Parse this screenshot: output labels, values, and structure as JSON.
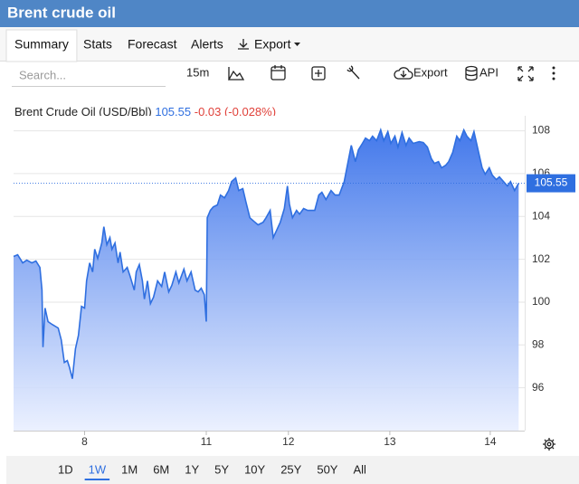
{
  "header": {
    "title": "Brent crude oil"
  },
  "tabs": [
    "Summary",
    "Stats",
    "Forecast",
    "Alerts",
    "Export"
  ],
  "active_tab": "Summary",
  "toolbar": {
    "search_placeholder": "Search...",
    "interval": "15m",
    "export": "Export",
    "api": "API"
  },
  "ranges": [
    "1D",
    "1W",
    "1M",
    "6M",
    "1Y",
    "5Y",
    "10Y",
    "25Y",
    "50Y",
    "All"
  ],
  "active_range": "1W",
  "chart_data": {
    "type": "area",
    "last_price": 105.55,
    "change": "-0.03 (-0.028%)",
    "x": [
      0.0,
      0.04,
      0.09,
      0.13,
      0.18,
      0.22,
      0.26,
      0.28,
      0.29,
      0.31,
      0.34,
      0.38,
      0.44,
      0.47,
      0.5,
      0.53,
      0.55,
      0.58,
      0.61,
      0.64,
      0.67,
      0.7,
      0.72,
      0.75,
      0.78,
      0.8,
      0.83,
      0.87,
      0.89,
      0.92,
      0.95,
      0.97,
      1.0,
      1.03,
      1.05,
      1.08,
      1.12,
      1.15,
      1.19,
      1.21,
      1.24,
      1.27,
      1.29,
      1.32,
      1.35,
      1.38,
      1.42,
      1.46,
      1.49,
      1.53,
      1.56,
      1.6,
      1.63,
      1.68,
      1.71,
      1.75,
      1.79,
      1.82,
      1.85,
      1.88,
      1.9,
      1.91,
      1.94,
      1.97,
      2.01,
      2.04,
      2.08,
      2.12,
      2.15,
      2.19,
      2.22,
      2.26,
      2.29,
      2.33,
      2.37,
      2.41,
      2.46,
      2.49,
      2.53,
      2.56,
      2.59,
      2.63,
      2.67,
      2.7,
      2.72,
      2.75,
      2.79,
      2.82,
      2.86,
      2.9,
      2.97,
      3.01,
      3.04,
      3.08,
      3.13,
      3.17,
      3.21,
      3.26,
      3.29,
      3.33,
      3.37,
      3.4,
      3.44,
      3.47,
      3.51,
      3.54,
      3.58,
      3.62,
      3.65,
      3.69,
      3.72,
      3.76,
      3.79,
      3.83,
      3.87,
      3.9,
      3.94,
      4.0,
      4.04,
      4.08,
      4.12,
      4.15,
      4.19,
      4.22,
      4.26,
      4.29,
      4.33,
      4.37,
      4.4,
      4.44,
      4.47,
      4.51,
      4.54,
      4.58,
      4.62,
      4.65,
      4.69,
      4.72,
      4.76,
      4.79,
      4.83,
      4.87,
      4.9,
      4.94,
      4.98
    ],
    "series": [
      {
        "name": "Brent Crude Oil (USD/Bbl)",
        "color": "#2f6fe0",
        "values": [
          102.13,
          102.21,
          101.83,
          101.96,
          101.83,
          101.92,
          101.62,
          100.56,
          97.9,
          99.72,
          99.09,
          98.96,
          98.79,
          98.24,
          97.18,
          97.27,
          96.97,
          96.42,
          97.82,
          98.45,
          99.8,
          99.72,
          100.99,
          101.83,
          101.41,
          102.47,
          102.04,
          102.76,
          103.52,
          102.68,
          103.01,
          102.47,
          102.76,
          101.83,
          102.34,
          101.41,
          101.62,
          101.2,
          100.56,
          101.41,
          101.75,
          100.99,
          100.14,
          100.99,
          99.93,
          100.23,
          100.99,
          100.73,
          101.41,
          100.48,
          100.78,
          101.41,
          100.9,
          101.54,
          100.99,
          101.41,
          100.56,
          100.48,
          100.65,
          100.35,
          99.09,
          103.94,
          104.28,
          104.45,
          104.54,
          105.0,
          104.87,
          105.21,
          105.63,
          105.8,
          105.21,
          105.3,
          104.7,
          103.94,
          103.77,
          103.61,
          103.73,
          103.94,
          104.28,
          103.01,
          103.31,
          103.73,
          104.37,
          105.42,
          104.58,
          103.94,
          104.28,
          104.11,
          104.37,
          104.28,
          104.28,
          105.0,
          105.13,
          104.79,
          105.21,
          105.0,
          105.0,
          105.63,
          106.35,
          107.32,
          106.56,
          107.11,
          107.41,
          107.66,
          107.54,
          107.75,
          107.54,
          108.04,
          107.54,
          107.96,
          107.41,
          107.75,
          107.24,
          107.92,
          107.32,
          107.66,
          107.41,
          107.49,
          107.45,
          107.24,
          106.69,
          106.48,
          106.56,
          106.27,
          106.39,
          106.56,
          106.99,
          107.75,
          107.54,
          108.04,
          107.75,
          107.54,
          107.96,
          107.11,
          106.27,
          105.97,
          106.27,
          105.93,
          105.72,
          105.85,
          105.63,
          105.42,
          105.63,
          105.21,
          105.55
        ]
      }
    ],
    "xlim": [
      0,
      5.04
    ],
    "xticks": [
      {
        "value": 0.7,
        "label": "8"
      },
      {
        "value": 1.9,
        "label": "11"
      },
      {
        "value": 2.71,
        "label": "12"
      },
      {
        "value": 3.71,
        "label": "13"
      },
      {
        "value": 4.7,
        "label": "14"
      }
    ],
    "ylim": [
      94,
      108.7
    ],
    "yticks": [
      96,
      98,
      100,
      102,
      104,
      106,
      108
    ],
    "grid": true
  }
}
